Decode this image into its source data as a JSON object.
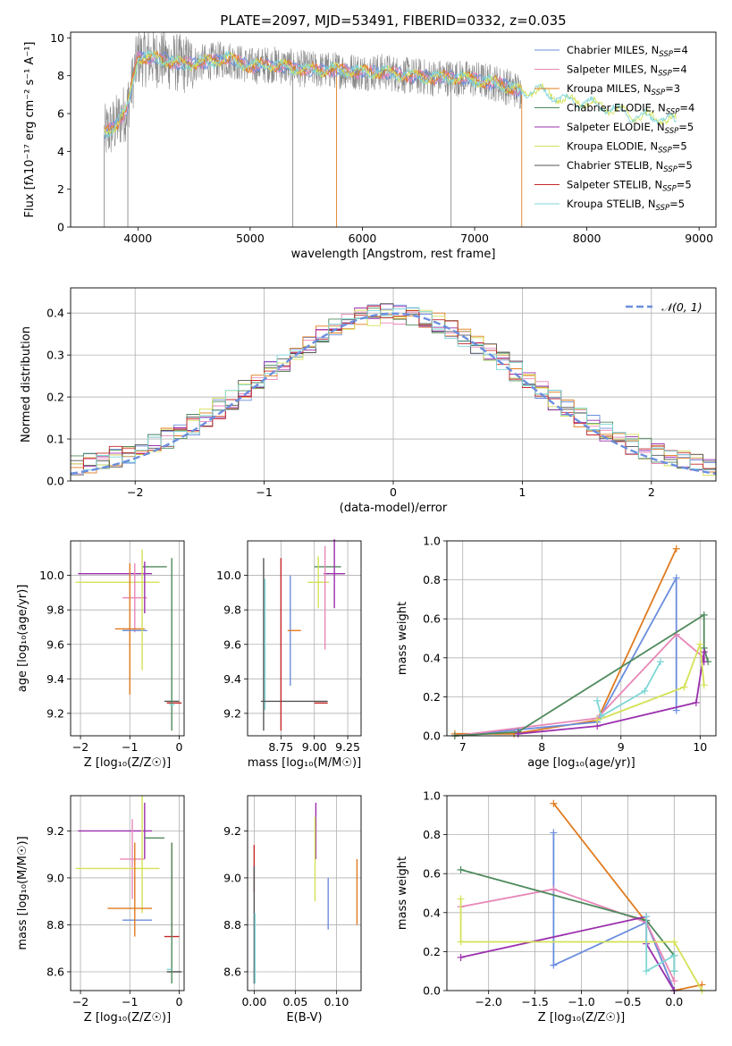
{
  "figure": {
    "title": "PLATE=2097, MJD=53491, FIBERID=0332, z=0.035"
  },
  "series_colors": {
    "Chabrier MILES": "#6b8ede",
    "Salpeter MILES": "#e887b8",
    "Kroupa MILES": "#e07b1f",
    "Chabrier ELODIE": "#4f8a5c",
    "Salpeter ELODIE": "#9b2fae",
    "Kroupa ELODIE": "#d4e157",
    "Chabrier STELIB": "#555555",
    "Salpeter STELIB": "#c62828",
    "Kroupa STELIB": "#7fd6d6"
  },
  "chart_data": [
    {
      "type": "line",
      "panel": "spectrum",
      "xlabel": "wavelength [Angstrom, rest frame]",
      "ylabel": "Flux [fλ10⁻¹⁷ erg cm⁻² s⁻¹ A⁻¹]",
      "xlim": [
        3400,
        9150
      ],
      "ylim": [
        0,
        10.3
      ],
      "xticks": [
        4000,
        5000,
        6000,
        7000,
        8000,
        9000
      ],
      "yticks": [
        0,
        2,
        4,
        6,
        8,
        10
      ],
      "grid": false,
      "legend_position": "top-right",
      "legend": [
        {
          "label": "Chabrier MILES, N",
          "sub": "SSP",
          "tail": "=4"
        },
        {
          "label": "Salpeter MILES, N",
          "sub": "SSP",
          "tail": "=4"
        },
        {
          "label": "Kroupa MILES, N",
          "sub": "SSP",
          "tail": "=3"
        },
        {
          "label": "Chabrier ELODIE, N",
          "sub": "SSP",
          "tail": "=4"
        },
        {
          "label": "Salpeter ELODIE, N",
          "sub": "SSP",
          "tail": "=5"
        },
        {
          "label": "Kroupa ELODIE, N",
          "sub": "SSP",
          "tail": "=5"
        },
        {
          "label": "Chabrier STELIB, N",
          "sub": "SSP",
          "tail": "=5"
        },
        {
          "label": "Salpeter STELIB, N",
          "sub": "SSP",
          "tail": "=5"
        },
        {
          "label": "Kroupa STELIB, N",
          "sub": "SSP",
          "tail": "=5"
        }
      ],
      "continuum": {
        "x": [
          3700,
          3800,
          3900,
          4000,
          4200,
          4400,
          4600,
          4800,
          5000,
          5200,
          5400,
          5600,
          5800,
          6000,
          6200,
          6400,
          6600,
          6800,
          7000,
          7200,
          7400,
          7600,
          7800,
          8000,
          8200,
          8400,
          8600,
          8800
        ],
        "y": [
          4.9,
          5.4,
          6.2,
          9.0,
          8.9,
          8.6,
          8.7,
          8.9,
          8.5,
          8.6,
          8.4,
          8.3,
          8.3,
          8.2,
          8.2,
          8.0,
          7.9,
          7.9,
          7.8,
          7.6,
          7.2,
          7.2,
          6.7,
          6.6,
          6.3,
          5.9,
          5.8,
          5.6
        ]
      },
      "data_range": [
        3700,
        7420
      ],
      "model_range": [
        3700,
        8800
      ]
    },
    {
      "type": "line",
      "panel": "residuals",
      "xlabel": "(data-model)/error",
      "ylabel": "Normed distribution",
      "xlim": [
        -2.5,
        2.5
      ],
      "ylim": [
        0,
        0.46
      ],
      "xticks": [
        -2,
        -1,
        0,
        1,
        2
      ],
      "yticks": [
        0.0,
        0.1,
        0.2,
        0.3,
        0.4
      ],
      "grid": true,
      "legend_position": "top-right",
      "legend": "𝒩(0, 1)",
      "bin_width": 0.1
    },
    {
      "type": "scatter",
      "panel": "age-vs-Z",
      "xlabel": "Z [log₁₀(Z/Z☉)]",
      "ylabel": "age  [log₁₀(age/yr)]",
      "xlim": [
        -2.2,
        0.1
      ],
      "ylim": [
        9.07,
        10.2
      ],
      "xticks": [
        -2,
        -1,
        0
      ],
      "yticks": [
        9.2,
        9.4,
        9.6,
        9.8,
        10.0
      ],
      "grid": true,
      "errorbars": [
        {
          "series": "Salpeter ELODIE",
          "x": -1.3,
          "y": 10.01,
          "xerr": 0.75,
          "yerr": 0.0
        },
        {
          "series": "Kroupa ELODIE",
          "x": -1.25,
          "y": 9.96,
          "xerr": 0.85,
          "yerr": 0.0
        },
        {
          "series": "Chabrier ELODIE",
          "x": -0.5,
          "y": 10.05,
          "xerr": 0.25,
          "yerr": 0.0
        },
        {
          "series": "Salpeter MILES",
          "x": -0.9,
          "y": 9.87,
          "xerr": 0.25,
          "yerr": 0.2
        },
        {
          "series": "Kroupa MILES",
          "x": -1.0,
          "y": 9.69,
          "xerr": 0.3,
          "yerr": 0.38
        },
        {
          "series": "Chabrier MILES",
          "x": -0.9,
          "y": 9.68,
          "xerr": 0.25,
          "yerr": 0.0
        },
        {
          "series": "Kroupa ELODIE",
          "x": -0.75,
          "y": 9.8,
          "xerr": 0.0,
          "yerr": 0.35
        },
        {
          "series": "Salpeter ELODIE",
          "x": -0.7,
          "y": 9.93,
          "xerr": 0.0,
          "yerr": 0.15
        },
        {
          "series": "Chabrier STELIB",
          "x": -0.15,
          "y": 9.27,
          "xerr": 0.15,
          "yerr": 0.0
        },
        {
          "series": "Salpeter STELIB",
          "x": -0.1,
          "y": 9.26,
          "xerr": 0.15,
          "yerr": 0.0
        },
        {
          "series": "Chabrier ELODIE",
          "x": -0.15,
          "y": 9.6,
          "xerr": 0.0,
          "yerr": 0.5
        },
        {
          "series": "Kroupa STELIB",
          "x": -0.15,
          "y": 9.25,
          "xerr": 0.05,
          "yerr": 0.0
        }
      ]
    },
    {
      "type": "scatter",
      "panel": "age-vs-mass",
      "xlabel": "mass [log₁₀(M/M☉)]",
      "ylabel": "",
      "xlim": [
        8.5,
        9.35
      ],
      "ylim": [
        9.07,
        10.2
      ],
      "xticks": [
        8.75,
        9.0,
        9.25
      ],
      "xticklabels": [
        "8.75",
        "9.00",
        "9.25"
      ],
      "yticks": [
        9.2,
        9.4,
        9.6,
        9.8,
        10.0
      ],
      "grid": true,
      "errorbars": [
        {
          "series": "Chabrier ELODIE",
          "x": 9.1,
          "y": 10.05,
          "xerr": 0.1,
          "yerr": 0.0
        },
        {
          "series": "Salpeter ELODIE",
          "x": 9.15,
          "y": 10.01,
          "xerr": 0.08,
          "yerr": 0.2
        },
        {
          "series": "Kroupa ELODIE",
          "x": 9.03,
          "y": 9.96,
          "xerr": 0.08,
          "yerr": 0.15
        },
        {
          "series": "Salpeter MILES",
          "x": 9.08,
          "y": 9.87,
          "xerr": 0.0,
          "yerr": 0.3
        },
        {
          "series": "Chabrier MILES",
          "x": 8.82,
          "y": 9.68,
          "xerr": 0.0,
          "yerr": 0.32
        },
        {
          "series": "Kroupa MILES",
          "x": 8.85,
          "y": 9.68,
          "xerr": 0.05,
          "yerr": 0.0
        },
        {
          "series": "Chabrier STELIB",
          "x": 8.62,
          "y": 9.6,
          "xerr": 0.0,
          "yerr": 0.5
        },
        {
          "series": "Kroupa STELIB",
          "x": 8.63,
          "y": 9.6,
          "xerr": 0.0,
          "yerr": 0.38
        },
        {
          "series": "Chabrier STELIB",
          "x": 8.85,
          "y": 9.27,
          "xerr": 0.25,
          "yerr": 0.0
        },
        {
          "series": "Salpeter STELIB",
          "x": 8.75,
          "y": 9.6,
          "xerr": 0.0,
          "yerr": 0.5
        },
        {
          "series": "Salpeter STELIB",
          "x": 9.05,
          "y": 9.26,
          "xerr": 0.05,
          "yerr": 0.0
        }
      ]
    },
    {
      "type": "line",
      "panel": "weight-vs-age",
      "xlabel": "age  [log₁₀(age/yr)]",
      "ylabel": "mass weight",
      "xlim": [
        6.8,
        10.2
      ],
      "ylim": [
        0,
        1.0
      ],
      "xticks": [
        7,
        8,
        9,
        10
      ],
      "yticks": [
        0.0,
        0.2,
        0.4,
        0.6,
        0.8,
        1.0
      ],
      "grid": true,
      "series": [
        {
          "name": "Kroupa MILES",
          "x": [
            6.9,
            7.65,
            8.7,
            9.7
          ],
          "y": [
            0.01,
            0.01,
            0.08,
            0.96
          ]
        },
        {
          "name": "Chabrier MILES",
          "x": [
            6.9,
            8.7,
            9.7,
            9.7
          ],
          "y": [
            0.0,
            0.07,
            0.81,
            0.13
          ]
        },
        {
          "name": "Salpeter MILES",
          "x": [
            6.9,
            8.7,
            9.7,
            10.05
          ],
          "y": [
            0.0,
            0.09,
            0.52,
            0.4
          ]
        },
        {
          "name": "Chabrier ELODIE",
          "x": [
            6.9,
            7.7,
            10.05,
            10.05,
            10.1
          ],
          "y": [
            0.0,
            0.02,
            0.62,
            0.45,
            0.38
          ]
        },
        {
          "name": "Salpeter ELODIE",
          "x": [
            7.7,
            8.7,
            9.95,
            10.05,
            10.05
          ],
          "y": [
            0.01,
            0.05,
            0.17,
            0.43,
            0.38
          ]
        },
        {
          "name": "Kroupa ELODIE",
          "x": [
            8.7,
            9.8,
            10.0,
            10.05
          ],
          "y": [
            0.08,
            0.25,
            0.47,
            0.26
          ]
        },
        {
          "name": "Kroupa STELIB",
          "x": [
            8.7,
            8.75,
            9.3,
            9.5
          ],
          "y": [
            0.18,
            0.1,
            0.23,
            0.38
          ]
        }
      ]
    },
    {
      "type": "scatter",
      "panel": "mass-vs-Z",
      "xlabel": "Z [log₁₀(Z/Z☉)]",
      "ylabel": "mass [log₁₀(M/M☉)]",
      "xlim": [
        -2.2,
        0.1
      ],
      "ylim": [
        8.52,
        9.35
      ],
      "xticks": [
        -2,
        -1,
        0
      ],
      "yticks": [
        8.6,
        8.8,
        9.0,
        9.2
      ],
      "grid": true,
      "errorbars": [
        {
          "series": "Salpeter ELODIE",
          "x": -1.3,
          "y": 9.2,
          "xerr": 0.75,
          "yerr": 0.0
        },
        {
          "series": "Salpeter ELODIE",
          "x": -0.7,
          "y": 9.2,
          "xerr": 0.0,
          "yerr": 0.12
        },
        {
          "series": "Chabrier ELODIE",
          "x": -0.5,
          "y": 9.17,
          "xerr": 0.2,
          "yerr": 0.0
        },
        {
          "series": "Salpeter MILES",
          "x": -0.95,
          "y": 9.08,
          "xerr": 0.25,
          "yerr": 0.17
        },
        {
          "series": "Kroupa ELODIE",
          "x": -1.25,
          "y": 9.04,
          "xerr": 0.85,
          "yerr": 0.0
        },
        {
          "series": "Kroupa ELODIE",
          "x": -0.75,
          "y": 9.1,
          "xerr": 0.0,
          "yerr": 0.25
        },
        {
          "series": "Kroupa MILES",
          "x": -1.0,
          "y": 8.87,
          "xerr": 0.45,
          "yerr": 0.0
        },
        {
          "series": "Chabrier MILES",
          "x": -0.85,
          "y": 8.82,
          "xerr": 0.3,
          "yerr": 0.0
        },
        {
          "series": "Kroupa MILES",
          "x": -0.9,
          "y": 8.95,
          "xerr": 0.0,
          "yerr": 0.2
        },
        {
          "series": "Salpeter STELIB",
          "x": -0.15,
          "y": 8.75,
          "xerr": 0.15,
          "yerr": 0.0
        },
        {
          "series": "Salpeter STELIB",
          "x": -0.15,
          "y": 8.95,
          "xerr": 0.0,
          "yerr": 0.2
        },
        {
          "series": "Chabrier STELIB",
          "x": -0.1,
          "y": 8.6,
          "xerr": 0.15,
          "yerr": 0.0
        },
        {
          "series": "Chabrier ELODIE",
          "x": -0.15,
          "y": 8.85,
          "xerr": 0.0,
          "yerr": 0.3
        },
        {
          "series": "Kroupa STELIB",
          "x": -0.2,
          "y": 8.61,
          "xerr": 0.05,
          "yerr": 0.0
        }
      ]
    },
    {
      "type": "scatter",
      "panel": "mass-vs-ebv",
      "xlabel": "E(B-V)",
      "ylabel": "",
      "xlim": [
        -0.008,
        0.13
      ],
      "ylim": [
        8.52,
        9.35
      ],
      "xticks": [
        0.0,
        0.05,
        0.1
      ],
      "xticklabels": [
        "0.00",
        "0.05",
        "0.10"
      ],
      "yticks": [
        8.6,
        8.8,
        9.0,
        9.2
      ],
      "grid": true,
      "errorbars": [
        {
          "series": "Salpeter ELODIE",
          "x": 0.075,
          "y": 9.2,
          "xerr": 0.0,
          "yerr": 0.12
        },
        {
          "series": "Kroupa ELODIE",
          "x": 0.074,
          "y": 9.08,
          "xerr": 0.0,
          "yerr": 0.18
        },
        {
          "series": "Chabrier MILES",
          "x": 0.09,
          "y": 8.89,
          "xerr": 0.0,
          "yerr": 0.11
        },
        {
          "series": "Kroupa MILES",
          "x": 0.125,
          "y": 8.94,
          "xerr": 0.0,
          "yerr": 0.14
        },
        {
          "series": "Salpeter STELIB",
          "x": 0.0,
          "y": 9.04,
          "xerr": 0.0,
          "yerr": 0.1
        },
        {
          "series": "Chabrier STELIB",
          "x": 0.0,
          "y": 8.8,
          "xerr": 0.0,
          "yerr": 0.25
        },
        {
          "series": "Kroupa STELIB",
          "x": 0.001,
          "y": 8.7,
          "xerr": 0.0,
          "yerr": 0.15
        }
      ]
    },
    {
      "type": "line",
      "panel": "weight-vs-Z",
      "xlabel": "Z [log₁₀(Z/Z☉)]",
      "ylabel": "mass weight",
      "xlim": [
        -2.45,
        0.45
      ],
      "ylim": [
        0,
        1.0
      ],
      "xticks": [
        -2.0,
        -1.5,
        -1.0,
        -0.5,
        0.0
      ],
      "xticklabels": [
        "−2.0",
        "−1.5",
        "−1.0",
        "−0.5",
        "0.0"
      ],
      "yticks": [
        0.0,
        0.2,
        0.4,
        0.6,
        0.8,
        1.0
      ],
      "grid": true,
      "series": [
        {
          "name": "Kroupa MILES",
          "x": [
            -1.3,
            -0.3,
            0.0,
            0.3
          ],
          "y": [
            0.96,
            0.35,
            0.0,
            0.03
          ]
        },
        {
          "name": "Chabrier MILES",
          "x": [
            -1.3,
            -1.3,
            -0.3,
            0.0
          ],
          "y": [
            0.81,
            0.13,
            0.35,
            0.0
          ]
        },
        {
          "name": "Salpeter MILES",
          "x": [
            -2.3,
            -1.3,
            -0.3,
            0.0
          ],
          "y": [
            0.43,
            0.52,
            0.35,
            0.05
          ]
        },
        {
          "name": "Chabrier ELODIE",
          "x": [
            -2.3,
            -0.3,
            0.0,
            0.0
          ],
          "y": [
            0.62,
            0.36,
            0.18,
            0.1
          ]
        },
        {
          "name": "Salpeter ELODIE",
          "x": [
            -2.3,
            -0.3,
            -0.3,
            0.0
          ],
          "y": [
            0.17,
            0.38,
            0.24,
            0.0
          ]
        },
        {
          "name": "Kroupa ELODIE",
          "x": [
            -2.3,
            -2.3,
            -0.3,
            0.0,
            0.3
          ],
          "y": [
            0.47,
            0.25,
            0.25,
            0.25,
            0.0
          ]
        },
        {
          "name": "Kroupa STELIB",
          "x": [
            -0.3,
            -0.3,
            0.0,
            0.0
          ],
          "y": [
            0.38,
            0.1,
            0.18,
            0.1
          ]
        }
      ]
    }
  ]
}
